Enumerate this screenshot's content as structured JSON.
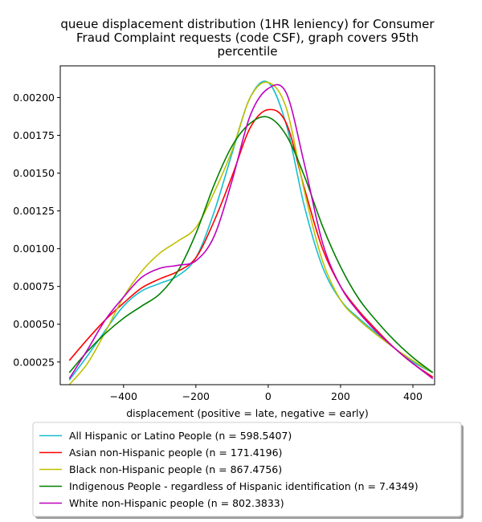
{
  "chart_data": {
    "type": "line",
    "title_lines": [
      "queue displacement distribution (1HR leniency) for Consumer",
      "Fraud Complaint  requests (code CSF), graph covers 95th",
      "percentile"
    ],
    "xlabel": "displacement (positive = late, negative = early)",
    "ylabel": "",
    "xlim": [
      -575,
      460
    ],
    "ylim": [
      0.0001,
      0.00221
    ],
    "x_ticks": [
      -400,
      -200,
      0,
      200,
      400
    ],
    "x_tick_labels": [
      "−400",
      "−200",
      "0",
      "200",
      "400"
    ],
    "y_ticks": [
      0.00025,
      0.0005,
      0.00075,
      0.001,
      0.00125,
      0.0015,
      0.00175,
      0.002
    ],
    "y_tick_labels": [
      "0.00025",
      "0.00050",
      "0.00075",
      "0.00100",
      "0.00125",
      "0.00150",
      "0.00175",
      "0.00200"
    ],
    "grid": false,
    "legend_position": "below-plot",
    "x": [
      -550,
      -500,
      -450,
      -400,
      -350,
      -300,
      -250,
      -200,
      -150,
      -100,
      -50,
      0,
      50,
      100,
      150,
      200,
      250,
      300,
      350,
      400,
      455
    ],
    "series": [
      {
        "name": "All Hispanic or Latino People (n = 598.5407)",
        "color": "#17becf",
        "values": [
          0.00013,
          0.00029,
          0.00046,
          0.00062,
          0.00072,
          0.00077,
          0.00082,
          0.00094,
          0.00124,
          0.00163,
          0.002,
          0.0021,
          0.00182,
          0.00128,
          0.00088,
          0.00066,
          0.00054,
          0.00044,
          0.00034,
          0.00025,
          0.00018
        ]
      },
      {
        "name": "Asian non-Hispanic people (n = 171.4196)",
        "color": "#ff0000",
        "values": [
          0.00026,
          0.0004,
          0.00053,
          0.00064,
          0.00074,
          0.0008,
          0.00085,
          0.00094,
          0.00118,
          0.00148,
          0.0018,
          0.00192,
          0.00183,
          0.0014,
          0.001,
          0.00075,
          0.00059,
          0.00046,
          0.00034,
          0.00024,
          0.00015
        ]
      },
      {
        "name": "Black non-Hispanic people (n = 867.4756)",
        "color": "#bfbf00",
        "values": [
          0.0001,
          0.00024,
          0.00045,
          0.00068,
          0.00085,
          0.00097,
          0.00105,
          0.00114,
          0.00137,
          0.00165,
          0.002,
          0.0021,
          0.00193,
          0.00138,
          0.00092,
          0.00066,
          0.00053,
          0.00043,
          0.00034,
          0.00026,
          0.00018
        ]
      },
      {
        "name": "Indigenous People - regardless of Hispanic identification (n = 7.4349)",
        "color": "#008000",
        "values": [
          0.00018,
          0.00032,
          0.00044,
          0.00054,
          0.00062,
          0.0007,
          0.00085,
          0.0011,
          0.00142,
          0.00168,
          0.00183,
          0.00187,
          0.00175,
          0.00148,
          0.00115,
          0.00088,
          0.00067,
          0.00052,
          0.00039,
          0.00028,
          0.00018
        ]
      },
      {
        "name": "White non-Hispanic people (n = 802.3833)",
        "color": "#bf00bf",
        "values": [
          0.00014,
          0.00033,
          0.00053,
          0.00068,
          0.00081,
          0.00087,
          0.00089,
          0.00092,
          0.00108,
          0.00145,
          0.00188,
          0.00206,
          0.00203,
          0.00156,
          0.00104,
          0.00075,
          0.00058,
          0.00045,
          0.00034,
          0.00024,
          0.00014
        ]
      }
    ]
  }
}
